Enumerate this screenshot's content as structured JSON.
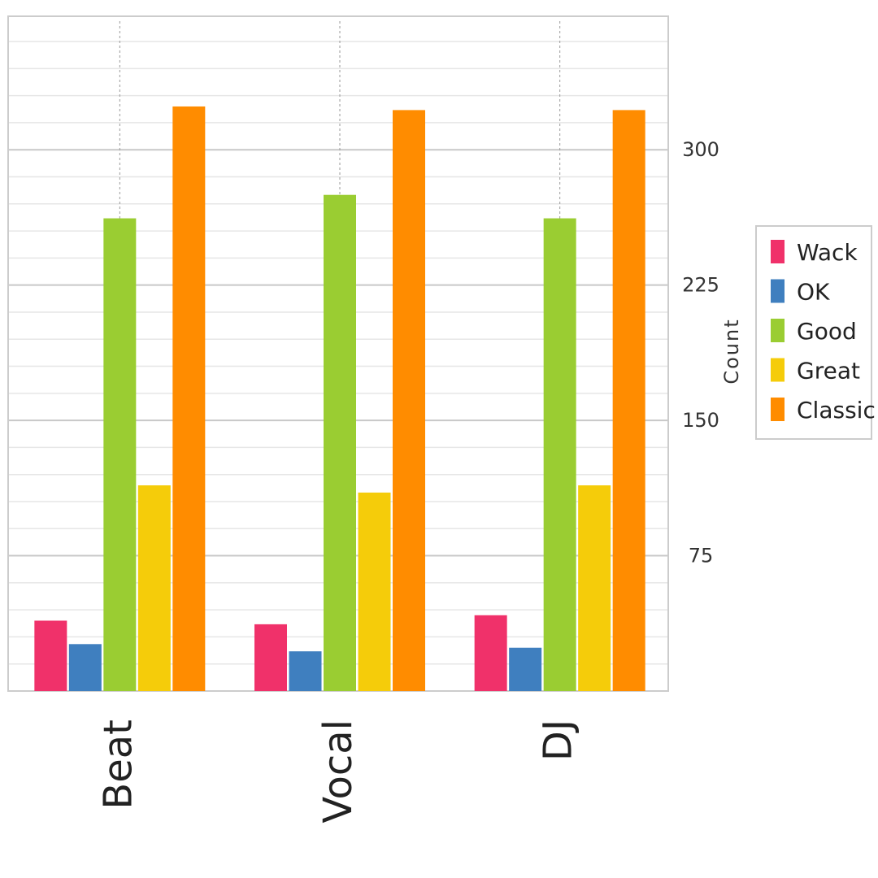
{
  "chart_data": {
    "type": "bar",
    "categories": [
      "Beat",
      "Vocal",
      "DJ"
    ],
    "series": [
      {
        "name": "Wack",
        "color": "#f0316a",
        "values": [
          39,
          37,
          42
        ]
      },
      {
        "name": "OK",
        "color": "#3f7fbf",
        "values": [
          26,
          22,
          24
        ]
      },
      {
        "name": "Good",
        "color": "#9acd32",
        "values": [
          262,
          275,
          262
        ]
      },
      {
        "name": "Great",
        "color": "#f5cc0a",
        "values": [
          114,
          110,
          114
        ]
      },
      {
        "name": "Classic",
        "color": "#ff8c00",
        "values": [
          324,
          322,
          322
        ]
      }
    ],
    "ylabel": "Count",
    "ylim": [
      0,
      374
    ],
    "y_ticks": [
      75,
      150,
      225,
      300
    ],
    "y_tick_labels": [
      "75",
      "150",
      "225",
      "300"
    ],
    "y_axis_position": "right",
    "legend_position": "right",
    "grid": true
  }
}
